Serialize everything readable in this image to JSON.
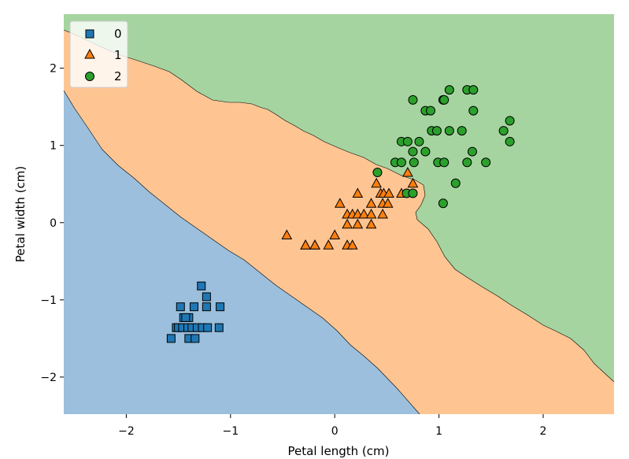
{
  "chart_data": {
    "type": "scatter",
    "title": "",
    "xlabel": "Petal length (cm)",
    "ylabel": "Petal width (cm)",
    "xlim": [
      -2.6,
      2.68
    ],
    "ylim": [
      -2.48,
      2.7
    ],
    "xticks": [
      -2,
      -1,
      0,
      1,
      2
    ],
    "yticks": [
      -2,
      -1,
      0,
      1,
      2
    ],
    "xtick_labels": [
      "−2",
      "−1",
      "0",
      "1",
      "2"
    ],
    "ytick_labels": [
      "−2",
      "−1",
      "0",
      "1",
      "2"
    ],
    "grid": false,
    "legend": {
      "location": "top-left",
      "entries": [
        "0",
        "1",
        "2"
      ]
    },
    "decision_regions": [
      {
        "class": "0",
        "color": "#9bbfdc"
      },
      {
        "class": "1",
        "color": "#fec593"
      },
      {
        "class": "2",
        "color": "#a6d4a0"
      }
    ],
    "series": [
      {
        "name": "0",
        "marker": "square",
        "color": "#1f77b4",
        "x": [
          -1.28,
          -1.23,
          -1.48,
          -1.35,
          -1.1,
          -1.23,
          -1.45,
          -1.4,
          -1.43,
          -1.52,
          -1.5,
          -1.46,
          -1.41,
          -1.37,
          -1.32,
          -1.27,
          -1.22,
          -1.11,
          -1.57,
          -1.4,
          -1.34
        ],
        "y": [
          -0.82,
          -0.96,
          -1.09,
          -1.09,
          -1.09,
          -1.09,
          -1.23,
          -1.23,
          -1.23,
          -1.36,
          -1.36,
          -1.36,
          -1.36,
          -1.36,
          -1.36,
          -1.36,
          -1.36,
          -1.36,
          -1.5,
          -1.5,
          -1.5
        ]
      },
      {
        "name": "1",
        "marker": "triangle",
        "color": "#ff7f0e",
        "x": [
          0.7,
          0.75,
          0.4,
          0.44,
          0.47,
          0.52,
          0.64,
          0.22,
          0.05,
          0.35,
          0.46,
          0.51,
          0.12,
          0.17,
          0.22,
          0.28,
          0.35,
          0.46,
          -0.46,
          -0.28,
          -0.19,
          0.0,
          0.12,
          0.22,
          0.35,
          -0.28,
          -0.19,
          -0.06,
          0.12,
          0.17
        ],
        "y": [
          0.65,
          0.51,
          0.51,
          0.38,
          0.38,
          0.38,
          0.38,
          0.38,
          0.25,
          0.25,
          0.25,
          0.25,
          0.11,
          0.11,
          0.11,
          0.11,
          0.11,
          0.11,
          -0.16,
          -0.29,
          -0.29,
          -0.16,
          -0.02,
          -0.02,
          -0.02,
          -0.29,
          -0.29,
          -0.29,
          -0.29,
          -0.29
        ]
      },
      {
        "name": "2",
        "marker": "circle",
        "color": "#2ca02c",
        "x": [
          1.1,
          1.27,
          1.33,
          0.75,
          1.04,
          1.05,
          0.87,
          0.92,
          1.33,
          1.68,
          0.93,
          0.98,
          1.1,
          1.22,
          1.62,
          0.64,
          0.7,
          0.81,
          1.68,
          0.75,
          0.87,
          1.32,
          0.58,
          0.64,
          0.76,
          0.99,
          1.05,
          1.27,
          1.45,
          0.41,
          1.16,
          0.69,
          0.75,
          1.04
        ],
        "y": [
          1.72,
          1.72,
          1.72,
          1.59,
          1.59,
          1.59,
          1.45,
          1.45,
          1.45,
          1.32,
          1.19,
          1.19,
          1.19,
          1.19,
          1.19,
          1.05,
          1.05,
          1.05,
          1.05,
          0.92,
          0.92,
          0.92,
          0.78,
          0.78,
          0.78,
          0.78,
          0.78,
          0.78,
          0.78,
          0.65,
          0.51,
          0.38,
          0.38,
          0.25
        ]
      }
    ]
  }
}
